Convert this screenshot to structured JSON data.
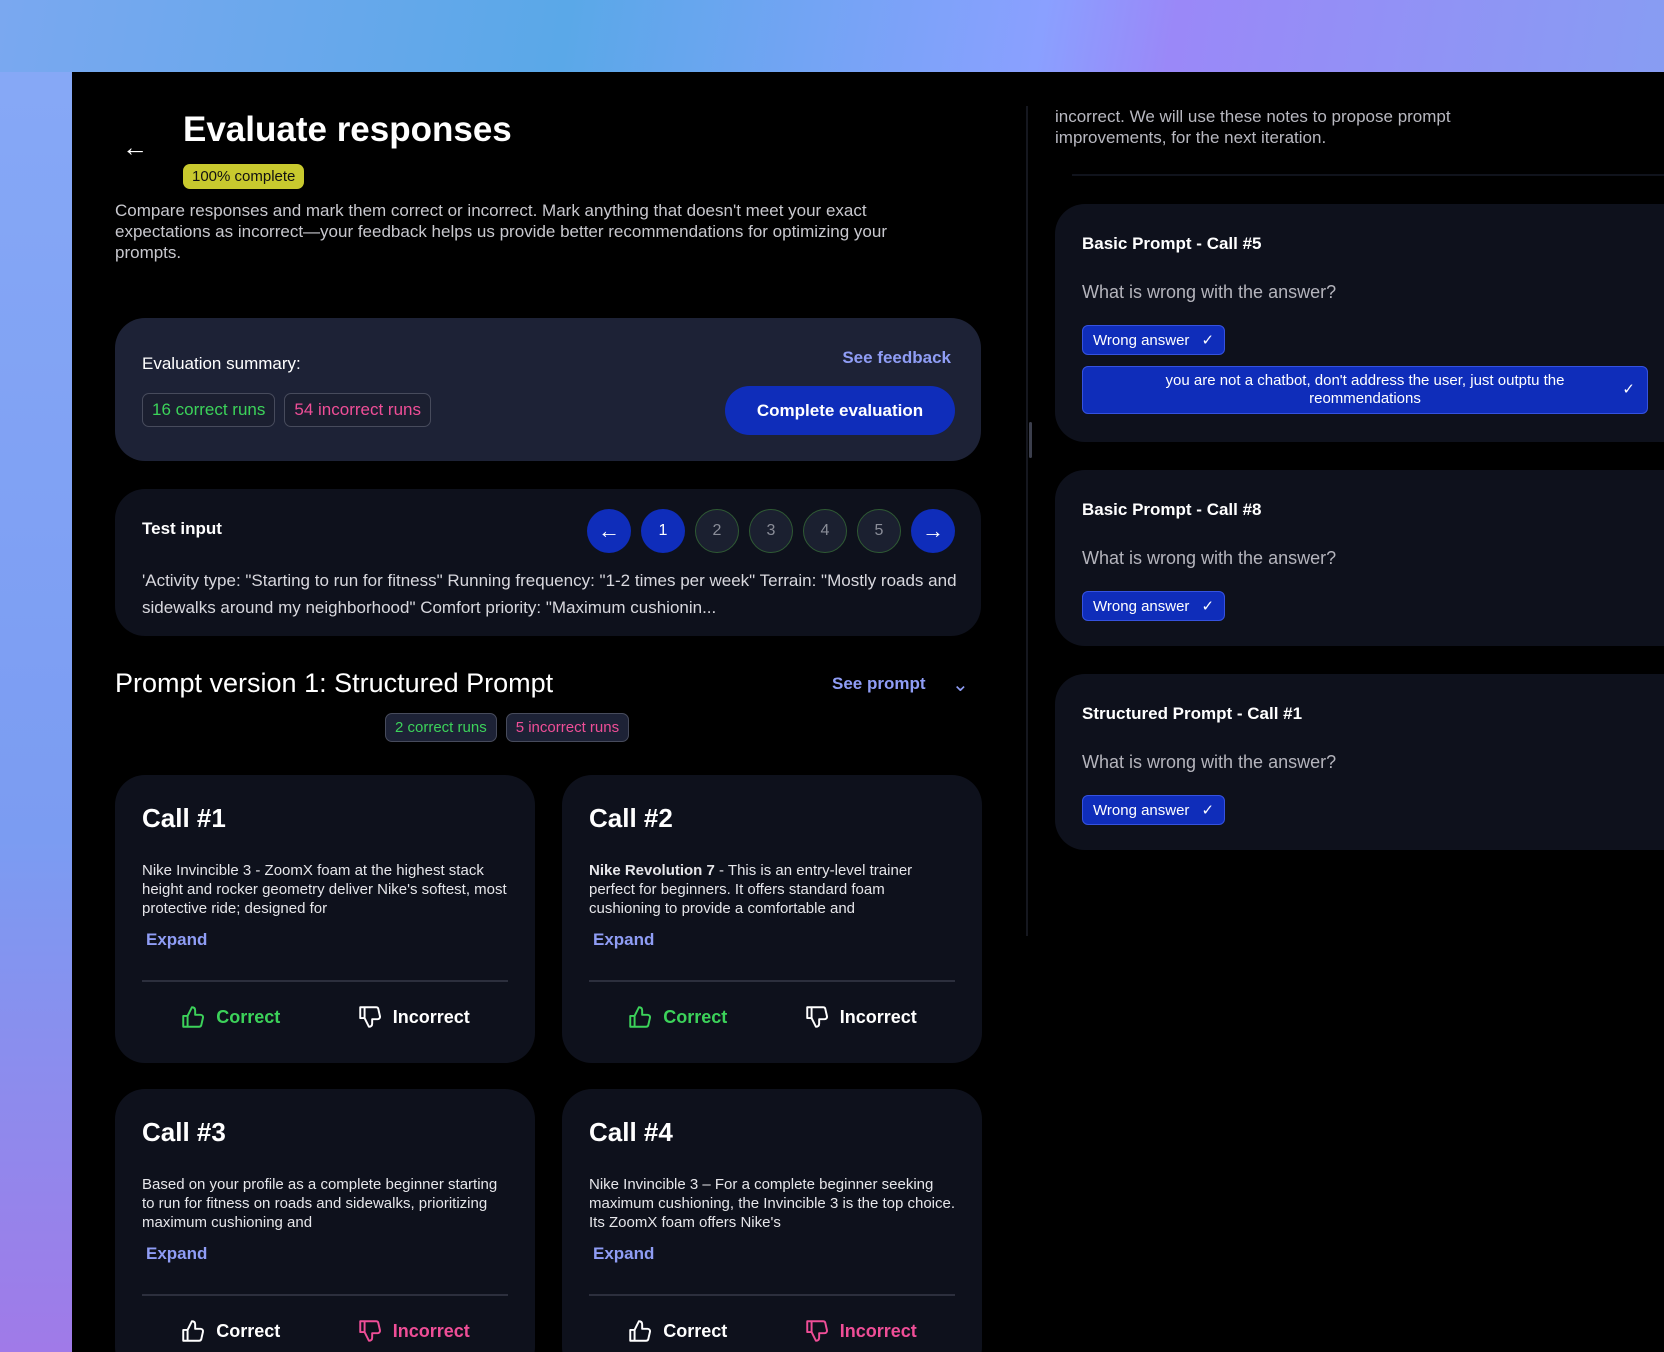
{
  "header": {
    "back_icon": "arrow-left-icon",
    "title": "Evaluate responses",
    "progress_badge": "100% complete",
    "progress_percent": 100,
    "description": "Compare responses and mark them correct or incorrect. Mark anything that doesn't meet your exact expectations as incorrect—your feedback helps us provide better recommendations for optimizing your prompts."
  },
  "summary": {
    "label": "Evaluation summary:",
    "correct": "16 correct runs",
    "incorrect": "54 incorrect runs",
    "see_feedback": "See feedback",
    "complete_button": "Complete evaluation"
  },
  "test_input": {
    "label": "Test input",
    "pages": [
      "1",
      "2",
      "3",
      "4",
      "5"
    ],
    "active_page": "1",
    "text": "'Activity type: \"Starting to run for fitness\" Running frequency: \"1-2 times per week\" Terrain: \"Mostly roads and sidewalks around my neighborhood\" Comfort priority: \"Maximum cushionin..."
  },
  "prompt": {
    "title": "Prompt version 1: Structured Prompt",
    "see_prompt": "See prompt",
    "correct": "2 correct runs",
    "incorrect": "5 incorrect runs"
  },
  "calls": [
    {
      "title": "Call #1",
      "bold": "",
      "text": "Nike Invincible 3 - ZoomX foam at the highest stack height and rocker geometry deliver Nike's softest, most protective ride; designed for",
      "expand": "Expand",
      "correct": "Correct",
      "incorrect": "Incorrect",
      "verdict": "correct"
    },
    {
      "title": "Call #2",
      "bold": "Nike Revolution 7",
      "text": " - This is an entry-level trainer perfect for beginners. It offers standard foam cushioning to provide a comfortable and",
      "expand": "Expand",
      "correct": "Correct",
      "incorrect": "Incorrect",
      "verdict": "correct"
    },
    {
      "title": "Call #3",
      "bold": "",
      "text": "Based on your profile as a complete beginner starting to run for fitness on roads and sidewalks, prioritizing maximum cushioning and",
      "expand": "Expand",
      "correct": "Correct",
      "incorrect": "Incorrect",
      "verdict": "incorrect"
    },
    {
      "title": "Call #4",
      "bold": "",
      "text": "Nike Invincible 3 – For a complete beginner seeking maximum cushioning, the Invincible 3 is the top choice. Its ZoomX foam offers Nike's",
      "expand": "Expand",
      "correct": "Correct",
      "incorrect": "Incorrect",
      "verdict": "incorrect"
    }
  ],
  "feedback": {
    "intro": "incorrect. We will use these notes to propose prompt improvements, for the next iteration.",
    "items": [
      {
        "title": "Basic Prompt - Call #5",
        "question": "What is wrong with the answer?",
        "chip": "Wrong answer",
        "note": "you are not a chatbot, don't address the user, just outptu the reommendations"
      },
      {
        "title": "Basic Prompt - Call #8",
        "question": "What is wrong with the answer?",
        "chip": "Wrong answer"
      },
      {
        "title": "Structured Prompt - Call #1",
        "question": "What is wrong with the answer?",
        "chip": "Wrong answer"
      }
    ]
  },
  "colors": {
    "accent": "#0f2dba",
    "correct": "#3cd25a",
    "incorrect": "#ef4e97",
    "link": "#8f9df5",
    "badge": "#c8c92e"
  }
}
